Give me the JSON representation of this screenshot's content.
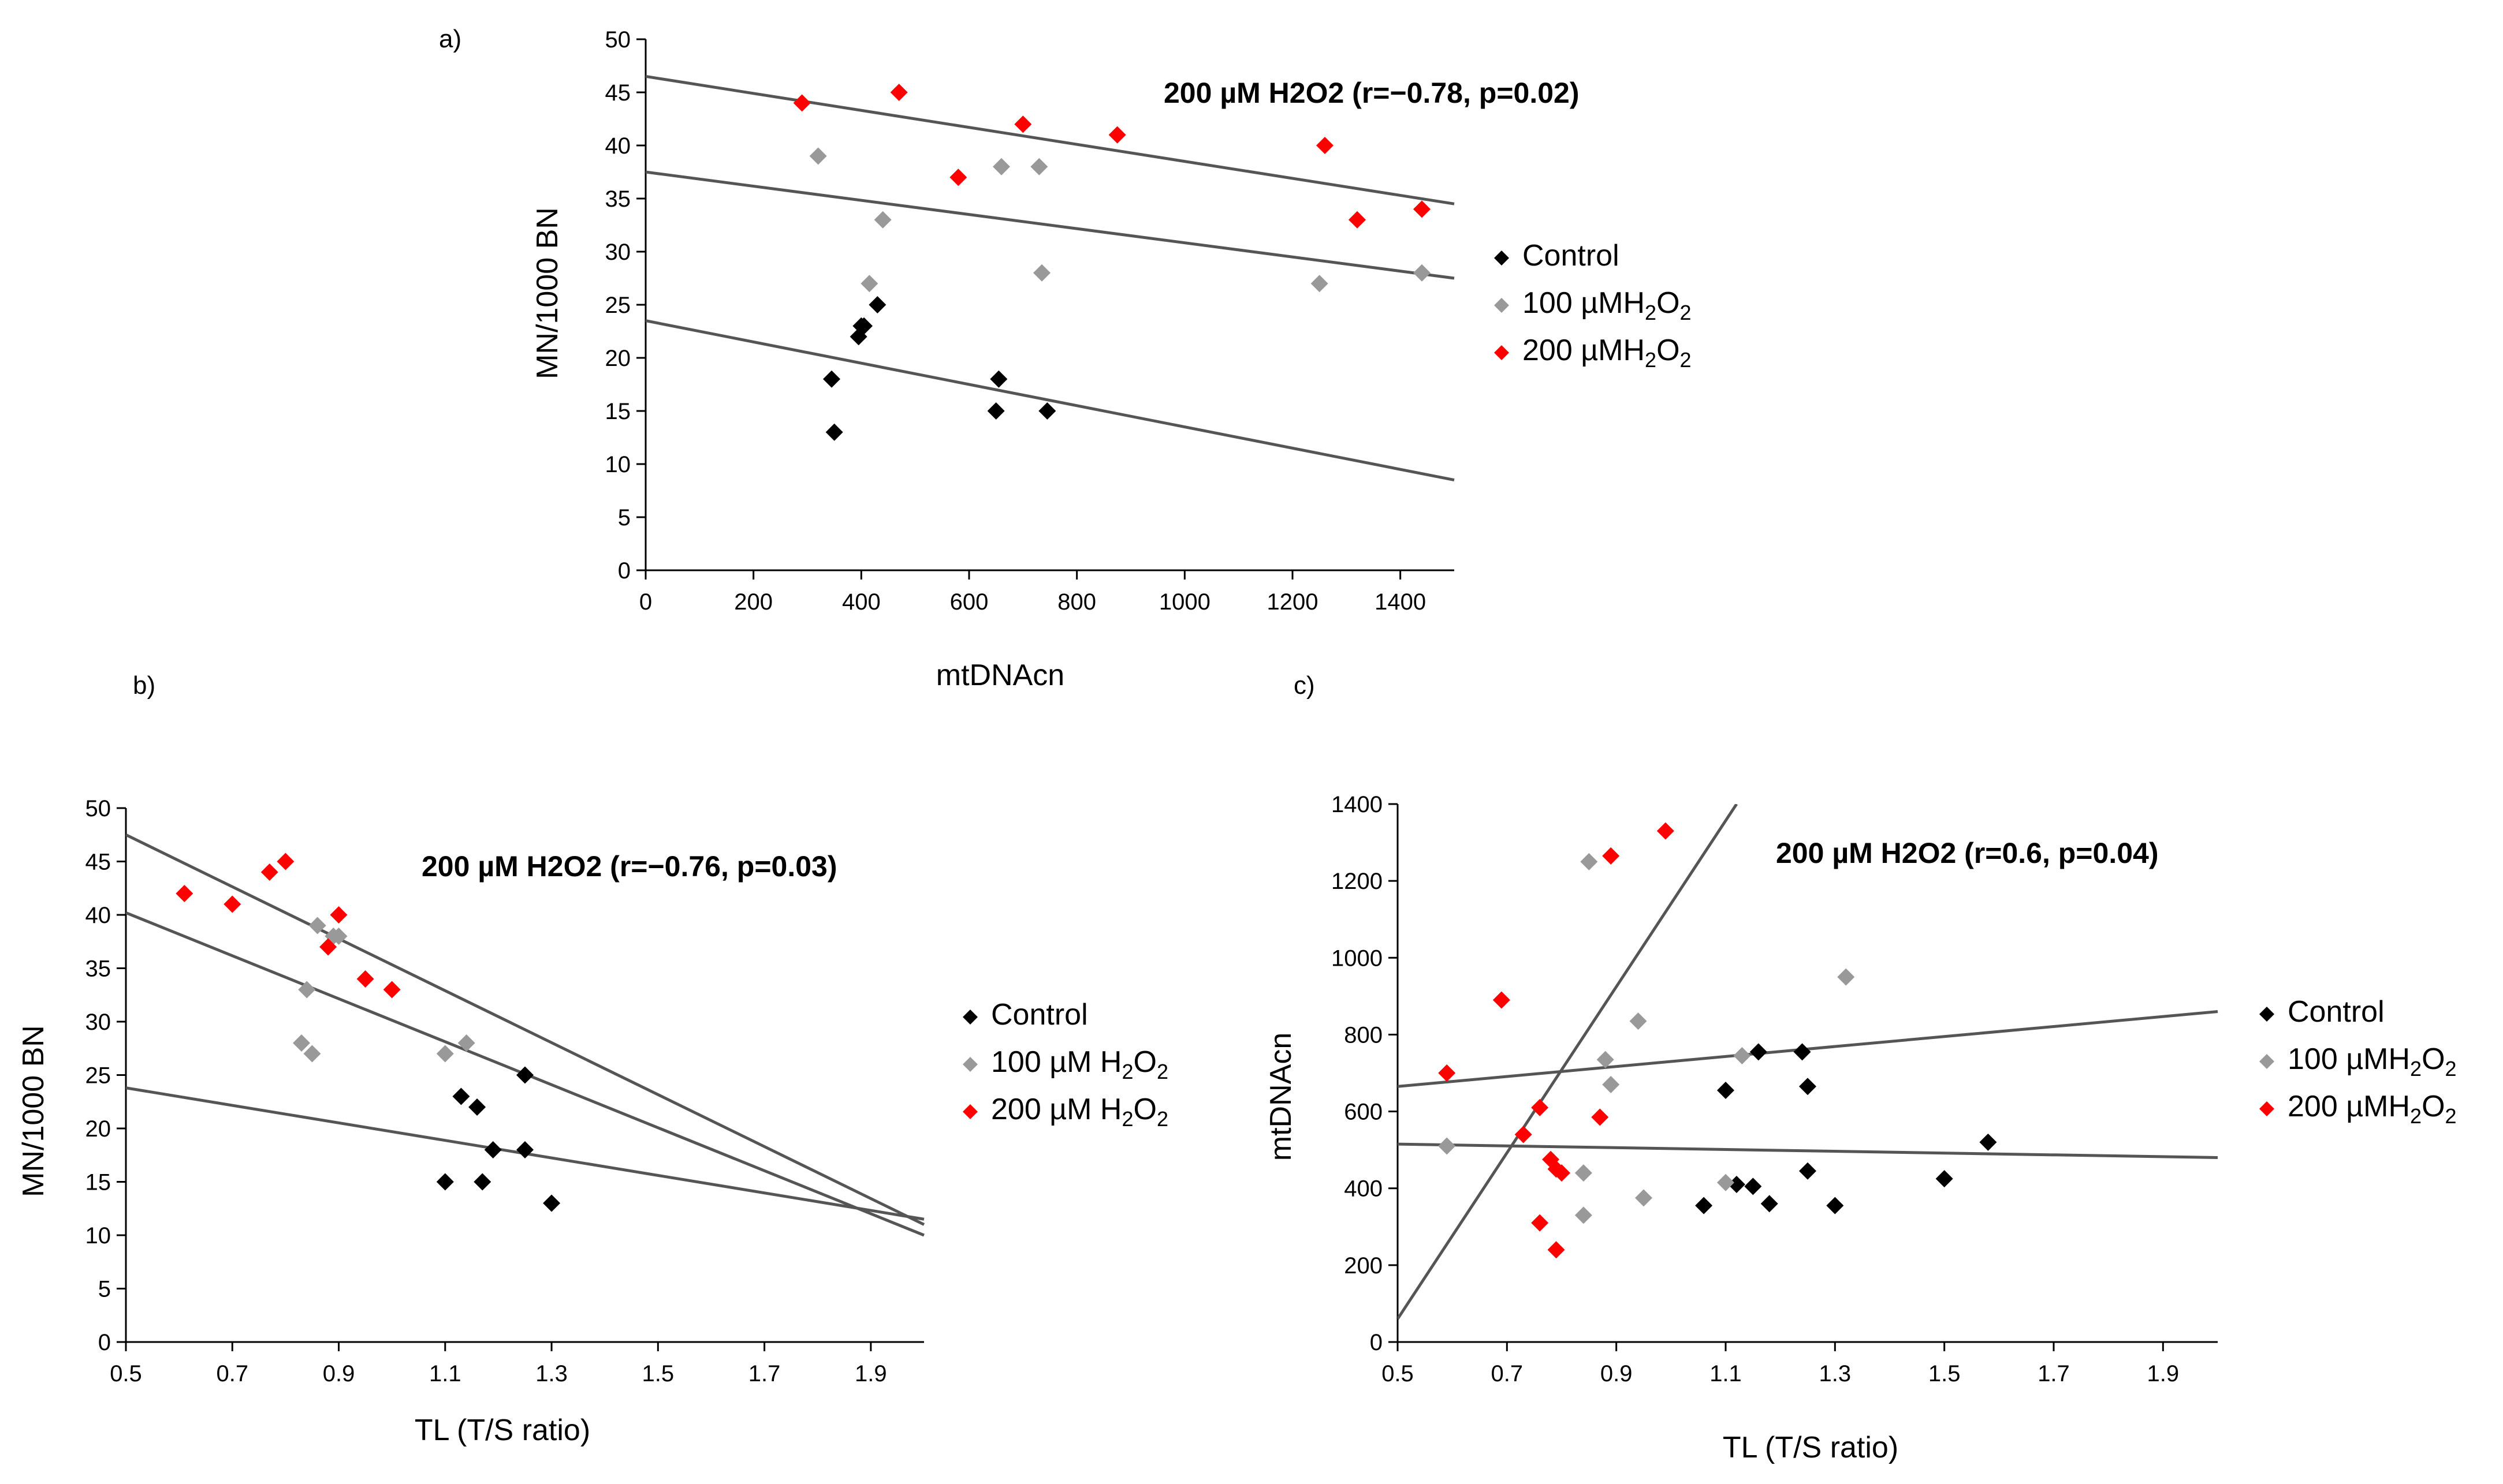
{
  "chart_data": [
    {
      "type": "scatter",
      "panel_label": "a)",
      "title": "",
      "xlabel": "mtDNAcn",
      "ylabel": "MN/1000 BN",
      "xlim": [
        0,
        1500
      ],
      "ylim": [
        0,
        50
      ],
      "xticks": [
        0,
        200,
        400,
        600,
        800,
        1000,
        1200,
        1400
      ],
      "xtick_labels": [
        "0",
        "200",
        "400",
        "600",
        "800",
        "1000",
        "1200",
        "1400"
      ],
      "yticks": [
        0,
        5,
        10,
        15,
        20,
        25,
        30,
        35,
        40,
        45,
        50
      ],
      "ytick_labels": [
        "0",
        "5",
        "10",
        "15",
        "20",
        "25",
        "30",
        "35",
        "40",
        "45",
        "50"
      ],
      "annotation": "200 µM H2O2 (r=−0.78, p=0.02)",
      "legend_position": "right",
      "series": [
        {
          "name": "Control",
          "label_main": "Control",
          "label_sub": "",
          "label_tail": "",
          "color": "#000000",
          "x": [
            345,
            350,
            395,
            400,
            405,
            430,
            650,
            655,
            745
          ],
          "y": [
            18,
            13,
            22,
            23,
            23,
            25,
            15,
            18,
            15
          ],
          "trend": [
            [
              0,
              23.5
            ],
            [
              1500,
              8.5
            ]
          ]
        },
        {
          "name": "100 µMH2O2",
          "label_main": "100 µMH",
          "label_sub": "2",
          "label_tail": "O",
          "label_sub2": "2",
          "color": "#999999",
          "x": [
            320,
            415,
            440,
            660,
            730,
            735,
            1250,
            1440
          ],
          "y": [
            39,
            27,
            33,
            38,
            38,
            28,
            27,
            28
          ],
          "trend": [
            [
              0,
              37.5
            ],
            [
              1500,
              27.5
            ]
          ]
        },
        {
          "name": "200 µMH2O2",
          "label_main": "200 µMH",
          "label_sub": "2",
          "label_tail": "O",
          "label_sub2": "2",
          "color": "#ff0000",
          "x": [
            290,
            470,
            580,
            700,
            875,
            1260,
            1320,
            1440
          ],
          "y": [
            44,
            45,
            37,
            42,
            41,
            40,
            33,
            34
          ],
          "trend": [
            [
              0,
              46.5
            ],
            [
              1500,
              34.5
            ]
          ]
        }
      ]
    },
    {
      "type": "scatter",
      "panel_label": "b)",
      "title": "",
      "xlabel": "TL  (T/S ratio)",
      "ylabel": "MN/1000 BN",
      "xlim": [
        0.5,
        2.0
      ],
      "ylim": [
        0,
        50
      ],
      "xticks": [
        0.5,
        0.7,
        0.9,
        1.1,
        1.3,
        1.5,
        1.7,
        1.9
      ],
      "xtick_labels": [
        "0.5",
        "0.7",
        "0.9",
        "1.1",
        "1.3",
        "1.5",
        "1.7",
        "1.9"
      ],
      "yticks": [
        0,
        5,
        10,
        15,
        20,
        25,
        30,
        35,
        40,
        45,
        50
      ],
      "ytick_labels": [
        "0",
        "5",
        "10",
        "15",
        "20",
        "25",
        "30",
        "35",
        "40",
        "45",
        "50"
      ],
      "annotation": "200 µM H2O2 (r=−0.76, p=0.03)",
      "legend_position": "right",
      "series": [
        {
          "name": "Control",
          "label_main": "Control",
          "label_sub": "",
          "label_tail": "",
          "color": "#000000",
          "x": [
            1.1,
            1.13,
            1.16,
            1.17,
            1.19,
            1.25,
            1.25,
            1.3
          ],
          "y": [
            15,
            23,
            22,
            15,
            18,
            25,
            18,
            13
          ],
          "trend": [
            [
              0.5,
              23.8
            ],
            [
              2.0,
              11.5
            ]
          ]
        },
        {
          "name": "100 µM H2O2",
          "label_main": "100 µM H",
          "label_sub": "2",
          "label_tail": "O",
          "label_sub2": "2",
          "color": "#999999",
          "x": [
            0.83,
            0.84,
            0.85,
            0.86,
            0.89,
            0.9,
            1.1,
            1.14
          ],
          "y": [
            28,
            33,
            27,
            39,
            38,
            38,
            27,
            28
          ],
          "trend": [
            [
              0.5,
              40.2
            ],
            [
              2.0,
              10.0
            ]
          ]
        },
        {
          "name": "200 µM H2O2",
          "label_main": "200 µM H",
          "label_sub": "2",
          "label_tail": "O",
          "label_sub2": "2",
          "color": "#ff0000",
          "x": [
            0.61,
            0.7,
            0.77,
            0.8,
            0.88,
            0.9,
            0.95,
            1.0
          ],
          "y": [
            42,
            41,
            44,
            45,
            37,
            40,
            34,
            33
          ],
          "trend": [
            [
              0.5,
              47.5
            ],
            [
              2.0,
              11.0
            ]
          ]
        }
      ]
    },
    {
      "type": "scatter",
      "panel_label": "c)",
      "title": "",
      "xlabel": "TL  (T/S ratio)",
      "ylabel": "mtDNAcn",
      "xlim": [
        0.5,
        2.0
      ],
      "ylim": [
        0,
        1400
      ],
      "xticks": [
        0.5,
        0.7,
        0.9,
        1.1,
        1.3,
        1.5,
        1.7,
        1.9
      ],
      "xtick_labels": [
        "0.5",
        "0.7",
        "0.9",
        "1.1",
        "1.3",
        "1.5",
        "1.7",
        "1.9"
      ],
      "yticks": [
        0,
        200,
        400,
        600,
        800,
        1000,
        1200,
        1400
      ],
      "ytick_labels": [
        "0",
        "200",
        "400",
        "600",
        "800",
        "1000",
        "1200",
        "1400"
      ],
      "annotation": "200 µM H2O2 (r=0.6, p=0.04)",
      "legend_position": "right",
      "series": [
        {
          "name": "Control",
          "label_main": "Control",
          "label_sub": "",
          "label_tail": "",
          "color": "#000000",
          "x": [
            1.06,
            1.1,
            1.12,
            1.15,
            1.16,
            1.18,
            1.24,
            1.25,
            1.25,
            1.3,
            1.5,
            1.58
          ],
          "y": [
            355,
            655,
            410,
            405,
            755,
            360,
            755,
            665,
            445,
            355,
            425,
            520
          ],
          "trend": [
            [
              0.5,
              515
            ],
            [
              2.0,
              480
            ]
          ]
        },
        {
          "name": "100 µMH2O2",
          "label_main": "100 µMH",
          "label_sub": "2",
          "label_tail": "O",
          "label_sub2": "2",
          "color": "#999999",
          "x": [
            0.59,
            0.84,
            0.84,
            0.85,
            0.88,
            0.89,
            0.94,
            0.95,
            1.1,
            1.13,
            1.32
          ],
          "y": [
            510,
            440,
            330,
            1250,
            735,
            670,
            835,
            375,
            415,
            745,
            950
          ],
          "trend": [
            [
              0.5,
              665
            ],
            [
              2.0,
              860
            ]
          ]
        },
        {
          "name": "200 µMH2O2",
          "label_main": "200 µMH",
          "label_sub": "2",
          "label_tail": "O",
          "label_sub2": "2",
          "color": "#ff0000",
          "x": [
            0.59,
            0.69,
            0.73,
            0.76,
            0.76,
            0.78,
            0.79,
            0.79,
            0.8,
            0.87,
            0.89,
            0.99
          ],
          "y": [
            700,
            890,
            540,
            310,
            610,
            475,
            450,
            240,
            440,
            585,
            1265,
            1330
          ],
          "trend": [
            [
              0.5,
              60
            ],
            [
              1.12,
              1400
            ]
          ]
        }
      ]
    }
  ]
}
